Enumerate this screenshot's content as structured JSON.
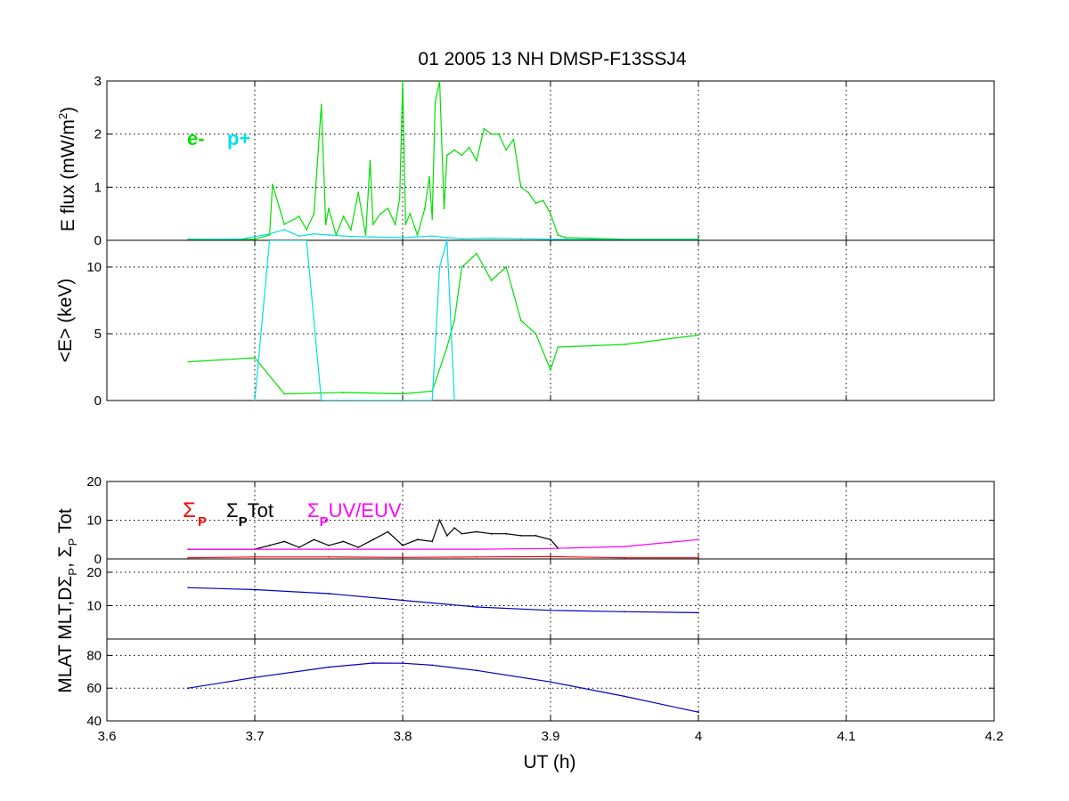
{
  "chart_data": [
    {
      "id": "energy-flux",
      "type": "line",
      "title": "01 2005 13 NH  DMSP-F13SSJ4",
      "ylabel": "E flux (mW/m²)",
      "xlim": [
        3.6,
        4.2
      ],
      "ylim": [
        0,
        3
      ],
      "yticks": [
        0,
        1,
        2,
        3
      ],
      "grid": true,
      "legend": {
        "placement": "upper-left",
        "entries": [
          "e-",
          "p+"
        ]
      },
      "series": [
        {
          "name": "e-",
          "color": "#00e000",
          "x": [
            3.655,
            3.7,
            3.71,
            3.712,
            3.72,
            3.73,
            3.735,
            3.74,
            3.745,
            3.748,
            3.75,
            3.755,
            3.76,
            3.765,
            3.77,
            3.775,
            3.778,
            3.78,
            3.785,
            3.79,
            3.795,
            3.798,
            3.8,
            3.802,
            3.805,
            3.81,
            3.815,
            3.818,
            3.82,
            3.822,
            3.825,
            3.828,
            3.83,
            3.835,
            3.84,
            3.845,
            3.85,
            3.855,
            3.86,
            3.865,
            3.87,
            3.875,
            3.88,
            3.885,
            3.89,
            3.895,
            3.9,
            3.905,
            3.91,
            3.95,
            4.0
          ],
          "y": [
            0.02,
            0.02,
            0.1,
            1.05,
            0.3,
            0.45,
            0.2,
            0.5,
            2.55,
            0.3,
            0.6,
            0.1,
            0.45,
            0.2,
            0.9,
            0.1,
            1.5,
            0.3,
            0.5,
            0.6,
            0.3,
            0.8,
            3.0,
            0.3,
            0.5,
            0.1,
            0.6,
            1.2,
            0.4,
            2.6,
            3.0,
            0.6,
            1.6,
            1.7,
            1.6,
            1.75,
            1.5,
            2.1,
            2.0,
            2.0,
            1.7,
            1.9,
            1.0,
            0.9,
            0.7,
            0.75,
            0.5,
            0.1,
            0.05,
            0.02,
            0.02
          ]
        },
        {
          "name": "p+",
          "color": "#00e0e0",
          "x": [
            3.655,
            3.69,
            3.7,
            3.71,
            3.72,
            3.73,
            3.74,
            3.75,
            3.76,
            3.78,
            3.8,
            3.82,
            3.83,
            3.84,
            3.86,
            3.88,
            3.9,
            3.95,
            4.0
          ],
          "y": [
            0.01,
            0.02,
            0.07,
            0.12,
            0.2,
            0.08,
            0.12,
            0.1,
            0.08,
            0.06,
            0.05,
            0.08,
            0.05,
            0.03,
            0.04,
            0.03,
            0.02,
            0.01,
            0.01
          ]
        }
      ]
    },
    {
      "id": "mean-energy",
      "type": "line",
      "ylabel": "<E> (keV)",
      "xlim": [
        3.6,
        4.2
      ],
      "ylim": [
        0,
        12
      ],
      "yticks": [
        0,
        5,
        10
      ],
      "grid": true,
      "series": [
        {
          "name": "e-",
          "color": "#00e000",
          "x": [
            3.655,
            3.7,
            3.72,
            3.76,
            3.8,
            3.82,
            3.83,
            3.835,
            3.84,
            3.85,
            3.86,
            3.87,
            3.88,
            3.89,
            3.9,
            3.905,
            3.95,
            4.0
          ],
          "y": [
            2.9,
            3.2,
            0.5,
            0.6,
            0.5,
            0.7,
            4.0,
            6.0,
            10.0,
            11.0,
            9.0,
            10.0,
            6.0,
            5.0,
            2.3,
            4.0,
            4.2,
            4.9
          ]
        },
        {
          "name": "p+",
          "color": "#00e0e0",
          "x": [
            3.7,
            3.71,
            3.735,
            3.745,
            3.755,
            3.765,
            3.82,
            3.825,
            3.83,
            3.835
          ],
          "y": [
            0,
            12,
            12,
            0,
            0,
            0,
            0,
            10,
            12,
            0
          ]
        }
      ]
    },
    {
      "id": "conductance",
      "type": "line",
      "ylabel": "ΣP, ΣP Tot",
      "xlim": [
        3.6,
        4.2
      ],
      "ylim": [
        0,
        20
      ],
      "yticks": [
        0,
        10,
        20
      ],
      "grid": true,
      "legend": {
        "placement": "upper-left",
        "entries": [
          "Σ",
          "ΣTot",
          "ΣUV/EUV"
        ],
        "subscript": "P"
      },
      "series": [
        {
          "name": "ΣP",
          "color": "#ff0000",
          "x": [
            3.655,
            3.7,
            3.75,
            3.8,
            3.85,
            3.9,
            3.95,
            4.0
          ],
          "y": [
            0.3,
            0.5,
            0.5,
            0.4,
            0.5,
            0.6,
            0.3,
            0.3
          ]
        },
        {
          "name": "ΣPTot",
          "color": "#000000",
          "x": [
            3.655,
            3.7,
            3.71,
            3.72,
            3.73,
            3.74,
            3.75,
            3.76,
            3.77,
            3.78,
            3.79,
            3.8,
            3.81,
            3.82,
            3.825,
            3.83,
            3.835,
            3.84,
            3.85,
            3.86,
            3.87,
            3.88,
            3.89,
            3.9,
            3.905
          ],
          "y": [
            2.5,
            2.5,
            3.5,
            4.5,
            3.0,
            5.0,
            3.5,
            4.5,
            3.0,
            5.0,
            7.0,
            3.5,
            5.0,
            4.5,
            10.0,
            6.0,
            8.0,
            6.5,
            7.0,
            6.5,
            6.5,
            6.0,
            6.0,
            5.0,
            2.8
          ]
        },
        {
          "name": "ΣPUV/EUV",
          "color": "#ff00ff",
          "x": [
            3.655,
            3.7,
            3.75,
            3.8,
            3.85,
            3.9,
            3.95,
            4.0
          ],
          "y": [
            2.5,
            2.5,
            2.5,
            2.5,
            2.5,
            2.7,
            3.2,
            5.0
          ]
        }
      ]
    },
    {
      "id": "mlt",
      "type": "line",
      "ylabel": "MLT,D",
      "xlim": [
        3.6,
        4.2
      ],
      "ylim": [
        0,
        24
      ],
      "yticks": [
        10,
        20
      ],
      "grid": true,
      "series": [
        {
          "name": "MLT",
          "color": "#0000c0",
          "x": [
            3.655,
            3.7,
            3.75,
            3.8,
            3.85,
            3.9,
            3.95,
            4.0
          ],
          "y": [
            15.4,
            14.8,
            13.6,
            11.6,
            9.6,
            8.6,
            8.2,
            7.9
          ]
        }
      ]
    },
    {
      "id": "mlat",
      "type": "line",
      "ylabel": "MLAT",
      "xlabel": "UT (h)",
      "xlim": [
        3.6,
        4.2
      ],
      "ylim": [
        40,
        90
      ],
      "yticks": [
        40,
        60,
        80
      ],
      "xticks": [
        "3.6",
        "3.7",
        "3.8",
        "3.9",
        "4",
        "4.1",
        "4.2"
      ],
      "grid": true,
      "series": [
        {
          "name": "MLAT",
          "color": "#0000c0",
          "x": [
            3.655,
            3.7,
            3.75,
            3.78,
            3.8,
            3.82,
            3.85,
            3.9,
            3.95,
            4.0
          ],
          "y": [
            60.0,
            66.5,
            72.8,
            75.3,
            75.2,
            74.0,
            70.8,
            63.8,
            55.0,
            45.3
          ]
        }
      ]
    }
  ]
}
